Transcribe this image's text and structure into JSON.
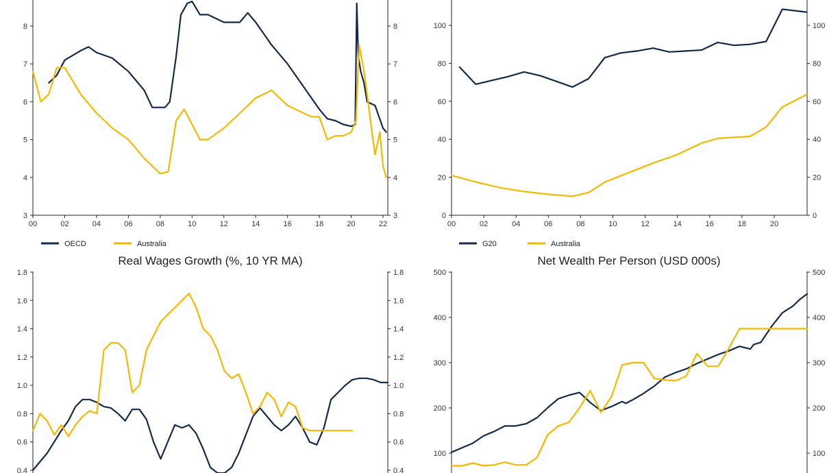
{
  "chart_data": [
    {
      "type": "line",
      "title": "",
      "x_ticks": [
        "00",
        "02",
        "04",
        "06",
        "08",
        "10",
        "12",
        "14",
        "16",
        "18",
        "20",
        "22"
      ],
      "y_ticks": [
        "3",
        "4",
        "5",
        "6",
        "7",
        "8"
      ],
      "ylim": [
        3,
        8.6
      ],
      "xlim": [
        2000,
        2022.3
      ],
      "legend": "bottom-left",
      "series": [
        {
          "name": "OECD",
          "color": "#13294b",
          "x": [
            2001,
            2001.5,
            2002,
            2003,
            2003.5,
            2004,
            2005,
            2006,
            2007,
            2007.5,
            2008,
            2008.3,
            2008.6,
            2009,
            2009.3,
            2009.7,
            2010,
            2010.5,
            2011,
            2012,
            2013,
            2013.5,
            2014,
            2015,
            2016,
            2017,
            2018,
            2018.5,
            2019,
            2019.5,
            2020,
            2020.25,
            2020.35,
            2020.45,
            2020.6,
            2020.8,
            2021,
            2021.5,
            2022,
            2022.2
          ],
          "y": [
            6.5,
            6.7,
            7.1,
            7.35,
            7.45,
            7.3,
            7.15,
            6.8,
            6.3,
            5.85,
            5.85,
            5.85,
            6.0,
            7.2,
            8.3,
            8.6,
            8.65,
            8.3,
            8.3,
            8.1,
            8.1,
            8.35,
            8.1,
            7.5,
            7.0,
            6.4,
            5.8,
            5.55,
            5.5,
            5.4,
            5.35,
            5.4,
            8.6,
            7.2,
            6.8,
            6.5,
            6.0,
            5.9,
            5.3,
            5.2
          ]
        },
        {
          "name": "Australia",
          "color": "#f5b800",
          "x": [
            2000,
            2000.5,
            2001,
            2001.5,
            2002,
            2003,
            2004,
            2005,
            2006,
            2007,
            2007.5,
            2008,
            2008.5,
            2009,
            2009.5,
            2010,
            2010.5,
            2011,
            2012,
            2013,
            2014,
            2015,
            2016,
            2017,
            2017.5,
            2018,
            2018.5,
            2019,
            2019.5,
            2020,
            2020.3,
            2020.5,
            2020.8,
            2021,
            2021.3,
            2021.5,
            2021.8,
            2022,
            2022.2
          ],
          "y": [
            6.8,
            6.0,
            6.2,
            6.9,
            6.9,
            6.2,
            5.7,
            5.3,
            5.0,
            4.5,
            4.3,
            4.1,
            4.15,
            5.5,
            5.8,
            5.4,
            5.0,
            5.0,
            5.3,
            5.7,
            6.1,
            6.3,
            5.9,
            5.7,
            5.6,
            5.6,
            5.0,
            5.1,
            5.1,
            5.2,
            5.5,
            7.5,
            6.8,
            6.2,
            5.2,
            4.6,
            5.2,
            4.3,
            4.0
          ]
        }
      ]
    },
    {
      "type": "line",
      "title": "",
      "x_ticks": [
        "00",
        "02",
        "04",
        "06",
        "08",
        "10",
        "12",
        "14",
        "16",
        "18",
        "20"
      ],
      "y_ticks": [
        "0",
        "20",
        "40",
        "60",
        "80",
        "100"
      ],
      "ylim": [
        0,
        112
      ],
      "xlim": [
        2000,
        2022
      ],
      "legend": "bottom-left",
      "series": [
        {
          "name": "G20",
          "color": "#13294b",
          "x": [
            2000.5,
            2001.5,
            2002.5,
            2003.5,
            2004.5,
            2005.5,
            2006.5,
            2007.5,
            2008.5,
            2009.5,
            2010.5,
            2011.5,
            2012.5,
            2013.5,
            2014.5,
            2015.5,
            2016.5,
            2017.5,
            2018.5,
            2019.5,
            2020.5,
            2022
          ],
          "y": [
            78,
            69,
            71,
            73,
            75.5,
            73.5,
            70.5,
            67.5,
            72,
            83,
            85.5,
            86.5,
            88,
            86,
            86.5,
            87,
            91,
            89.5,
            90,
            91.5,
            108.5,
            107
          ]
        },
        {
          "name": "Australia",
          "color": "#f5b800",
          "x": [
            2000,
            2001.5,
            2003,
            2004.5,
            2006,
            2007.5,
            2008.5,
            2009.5,
            2011,
            2012.5,
            2014,
            2015.5,
            2016.5,
            2017.5,
            2018.5,
            2019.5,
            2020.5,
            2022
          ],
          "y": [
            21,
            17.5,
            14.5,
            12.5,
            11,
            10,
            12,
            17.5,
            22.5,
            27.5,
            32,
            38,
            40.5,
            41,
            41.5,
            46.5,
            57,
            63.5
          ]
        }
      ]
    },
    {
      "type": "line",
      "title": "Real Wages Growth (%, 10 YR MA)",
      "y_ticks": [
        "0.4",
        "0.6",
        "0.8",
        "1.0",
        "1.2",
        "1.4",
        "1.6",
        "1.8"
      ],
      "ylim": [
        0.4,
        1.8
      ],
      "series": [
        {
          "name": "",
          "color": "#13294b",
          "x": [
            0,
            4,
            6,
            8,
            10,
            12,
            14,
            16,
            18,
            20,
            22,
            23,
            24,
            26,
            28,
            30,
            32,
            34,
            36,
            38,
            40,
            42,
            44,
            46,
            48,
            50,
            52,
            54,
            56,
            58,
            60,
            62,
            64,
            66,
            68,
            70,
            72,
            74,
            76,
            78,
            80,
            82,
            84,
            86,
            88,
            90,
            92,
            94,
            96,
            98,
            100
          ],
          "y": [
            0.4,
            0.52,
            0.6,
            0.68,
            0.75,
            0.85,
            0.9,
            0.9,
            0.88,
            0.85,
            0.84,
            0.82,
            0.8,
            0.75,
            0.83,
            0.83,
            0.76,
            0.6,
            0.48,
            0.6,
            0.72,
            0.7,
            0.72,
            0.66,
            0.55,
            0.42,
            0.38,
            0.36,
            0.42,
            0.52,
            0.65,
            0.78,
            0.84,
            0.78,
            0.72,
            0.68,
            0.72,
            0.78,
            0.7,
            0.6,
            0.58,
            0.7,
            0.9,
            0.95,
            1.0,
            1.04,
            1.05,
            1.05,
            1.04,
            1.02,
            1.02
          ]
        },
        {
          "name": "",
          "color": "#f5b800",
          "x": [
            0,
            2,
            4,
            6,
            8,
            10,
            12,
            14,
            16,
            18,
            20,
            22,
            24,
            26,
            28,
            30,
            32,
            34,
            36,
            38,
            40,
            42,
            44,
            46,
            48,
            50,
            52,
            54,
            56,
            58,
            60,
            62,
            64,
            66,
            68,
            70,
            72,
            74,
            76,
            78,
            80,
            82,
            84,
            86,
            88,
            90
          ],
          "y": [
            0.68,
            0.8,
            0.75,
            0.65,
            0.72,
            0.64,
            0.72,
            0.78,
            0.82,
            0.8,
            1.25,
            1.3,
            1.3,
            1.25,
            0.95,
            1.0,
            1.25,
            1.35,
            1.45,
            1.5,
            1.55,
            1.6,
            1.65,
            1.55,
            1.4,
            1.35,
            1.25,
            1.1,
            1.05,
            1.08,
            0.95,
            0.8,
            0.85,
            0.95,
            0.9,
            0.78,
            0.88,
            0.85,
            0.7,
            0.68,
            0.68,
            0.68,
            0.68,
            0.68,
            0.68,
            0.68
          ]
        }
      ]
    },
    {
      "type": "line",
      "title": "Net Wealth Per Person (USD 000s)",
      "y_ticks": [
        "100",
        "200",
        "300",
        "400",
        "500"
      ],
      "ylim": [
        52,
        500
      ],
      "series": [
        {
          "name": "",
          "color": "#13294b",
          "x": [
            0,
            3,
            6,
            9,
            12,
            15,
            18,
            21,
            24,
            27,
            30,
            33,
            36,
            39,
            42,
            45,
            48,
            49,
            51,
            54,
            57,
            60,
            63,
            66,
            69,
            72,
            75,
            78,
            81,
            84,
            85,
            87,
            90,
            93,
            96,
            98,
            100
          ],
          "y": [
            102,
            112,
            122,
            138,
            148,
            160,
            160,
            165,
            178,
            200,
            220,
            228,
            234,
            212,
            194,
            203,
            214,
            210,
            218,
            232,
            248,
            268,
            278,
            286,
            298,
            308,
            318,
            326,
            336,
            330,
            340,
            345,
            380,
            410,
            425,
            440,
            452
          ]
        },
        {
          "name": "",
          "color": "#f5b800",
          "x": [
            0,
            3,
            6,
            9,
            12,
            15,
            18,
            21,
            24,
            27,
            30,
            33,
            36,
            39,
            42,
            45,
            48,
            51,
            54,
            57,
            60,
            63,
            66,
            69,
            72,
            75,
            78,
            81,
            84,
            87,
            90,
            93,
            96,
            100
          ],
          "y": [
            72,
            72,
            78,
            72,
            74,
            80,
            74,
            74,
            90,
            140,
            160,
            168,
            200,
            238,
            190,
            225,
            295,
            300,
            300,
            265,
            262,
            260,
            270,
            320,
            292,
            292,
            332,
            375,
            375,
            375,
            375,
            375,
            375,
            375
          ]
        }
      ]
    }
  ],
  "legends": {
    "top_left": [
      "OECD",
      "Australia"
    ],
    "top_right": [
      "G20",
      "Australia"
    ]
  }
}
